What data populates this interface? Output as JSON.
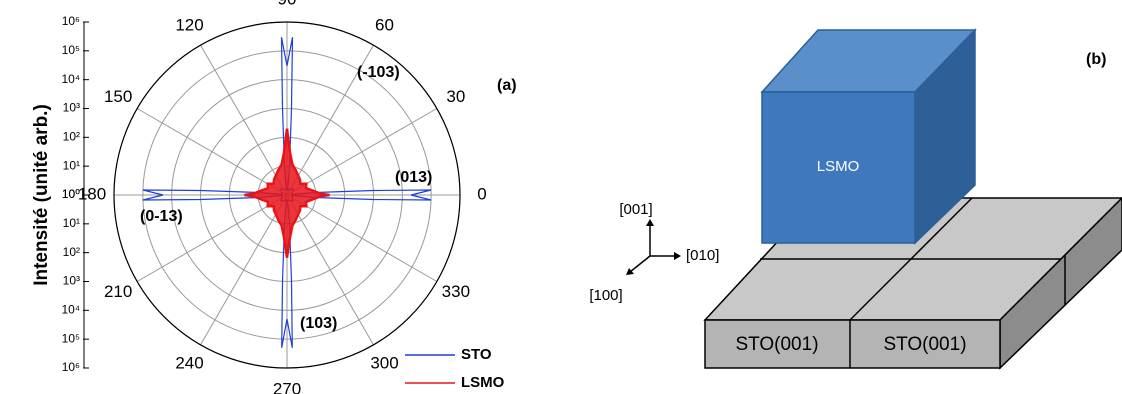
{
  "chart_data": {
    "type": "polar",
    "y_label": "Intensité (unité arb.)",
    "log_scale": true,
    "rlim": [
      1,
      1000000
    ],
    "rticks": [
      {
        "value": 1,
        "label": "10⁰"
      },
      {
        "value": 10,
        "label": "10¹"
      },
      {
        "value": 100,
        "label": "10²"
      },
      {
        "value": 1000,
        "label": "10³"
      },
      {
        "value": 10000,
        "label": "10⁴"
      },
      {
        "value": 100000,
        "label": "10⁵"
      },
      {
        "value": 1000000,
        "label": "10⁶"
      }
    ],
    "angle_ticks": [
      0,
      30,
      60,
      90,
      120,
      150,
      180,
      210,
      240,
      270,
      300,
      330
    ],
    "grid": true,
    "legend": "lower right",
    "series": [
      {
        "name": "STO",
        "color": "#1f3fdc",
        "x": [
          0,
          2,
          3,
          5,
          8,
          45,
          82,
          85,
          87,
          88,
          90,
          92,
          93,
          95,
          98,
          135,
          172,
          175,
          177,
          178,
          180,
          182,
          183,
          185,
          188,
          225,
          262,
          265,
          267,
          268,
          270,
          272,
          273,
          275,
          278,
          315,
          352,
          355,
          357,
          358
        ],
        "values": [
          20000,
          100000,
          1000,
          10,
          1.5,
          2,
          1.5,
          10,
          1000,
          300000,
          30000,
          300000,
          1000,
          10,
          1.5,
          2,
          1.5,
          10,
          1000,
          100000,
          20000,
          100000,
          1000,
          10,
          1.5,
          2,
          1.5,
          10,
          1000,
          200000,
          20000,
          200000,
          1000,
          10,
          1.5,
          2,
          1.5,
          10,
          1000,
          100000
        ]
      },
      {
        "name": "LSMO",
        "color": "#e8141a",
        "x": [
          0,
          2,
          10,
          20,
          30,
          40,
          50,
          60,
          70,
          80,
          86,
          90,
          94,
          100,
          110,
          120,
          130,
          140,
          150,
          160,
          170,
          178,
          180,
          182,
          190,
          200,
          210,
          220,
          230,
          240,
          250,
          260,
          266,
          270,
          274,
          280,
          290,
          300,
          310,
          320,
          330,
          340,
          350,
          358
        ],
        "values": [
          30,
          15,
          8,
          5,
          6,
          4,
          5,
          6,
          8,
          12,
          30,
          200,
          30,
          12,
          8,
          6,
          5,
          4,
          6,
          5,
          8,
          15,
          30,
          15,
          8,
          5,
          6,
          4,
          5,
          6,
          8,
          12,
          30,
          150,
          30,
          12,
          8,
          6,
          5,
          4,
          6,
          5,
          8,
          15
        ]
      }
    ],
    "annotations": [
      "(-103)",
      "(013)",
      "(0-13)",
      "(103)",
      "(a)"
    ]
  },
  "diagram": {
    "label": "(b)",
    "film": "LSMO",
    "substrate": [
      "STO(001)",
      "STO(001)"
    ],
    "axes": [
      "[001]",
      "[010]",
      "[100]"
    ]
  }
}
